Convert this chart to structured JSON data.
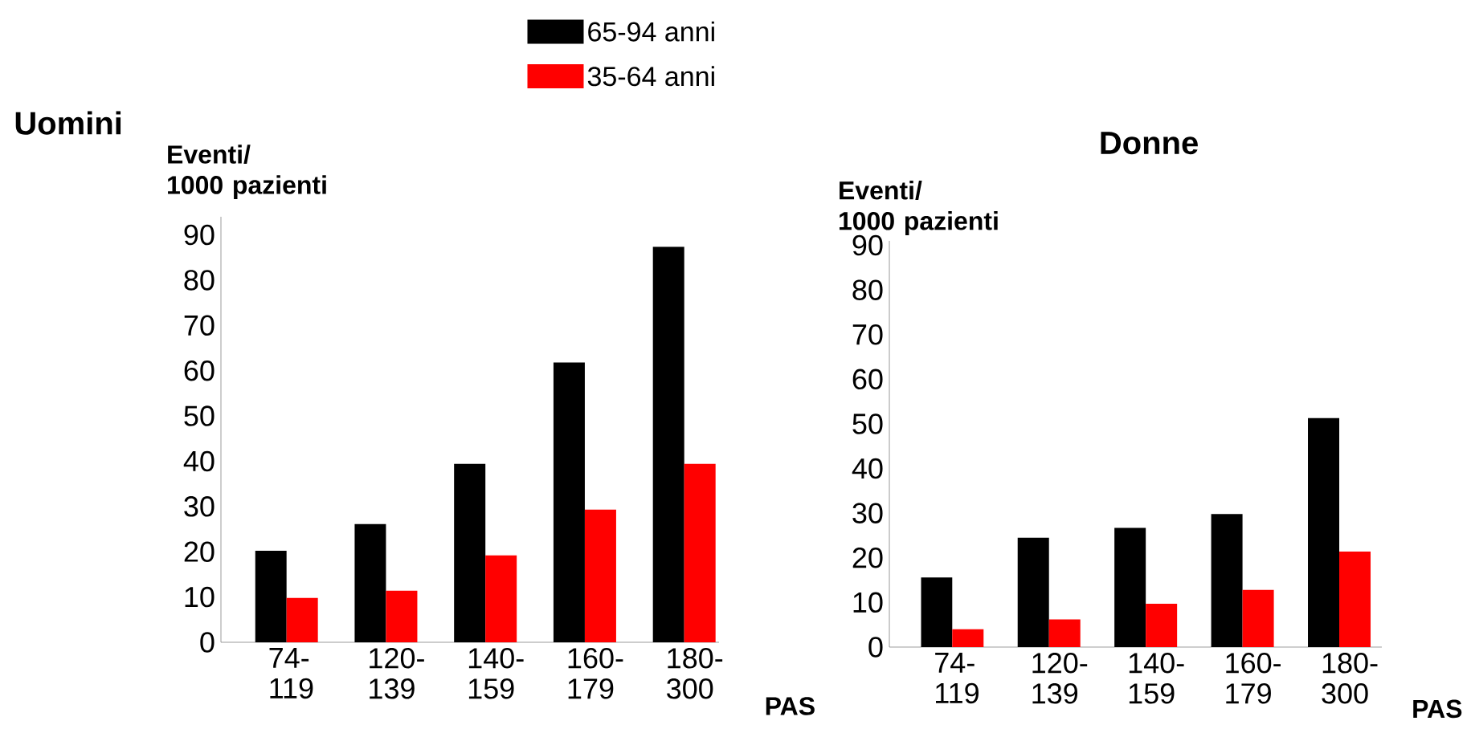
{
  "chart_data": [
    {
      "type": "bar",
      "title": "Uomini",
      "xlabel": "PAS",
      "ylabel": "Eventi/ 1000 pazienti",
      "categories": [
        "74-119",
        "120-139",
        "140-159",
        "160-179",
        "180-300"
      ],
      "series": [
        {
          "name": "65-94 anni",
          "color": "#000000",
          "values": [
            20.2,
            26.1,
            39.4,
            61.8,
            87.4
          ]
        },
        {
          "name": "35-64 anni",
          "color": "#ff0000",
          "values": [
            9.8,
            11.4,
            19.2,
            29.3,
            39.4
          ]
        }
      ],
      "ylim": [
        0,
        94
      ],
      "yticks": [
        0,
        10,
        20,
        30,
        40,
        50,
        60,
        70,
        80,
        90
      ],
      "legend": "top"
    },
    {
      "type": "bar",
      "title": "Donne",
      "xlabel": "PAS",
      "ylabel": "Eventi/ 1000 pazienti",
      "categories": [
        "74-119",
        "120-139",
        "140-159",
        "160-179",
        "180-300"
      ],
      "series": [
        {
          "color": "#000000",
          "values": [
            15.6,
            24.5,
            26.7,
            29.8,
            51.3
          ]
        },
        {
          "color": "#ff0000",
          "values": [
            4.0,
            6.2,
            9.7,
            12.8,
            21.4
          ]
        }
      ],
      "ylim": [
        0,
        91
      ],
      "yticks": [
        0,
        10,
        20,
        30,
        40,
        50,
        60,
        70,
        80,
        90
      ]
    }
  ]
}
